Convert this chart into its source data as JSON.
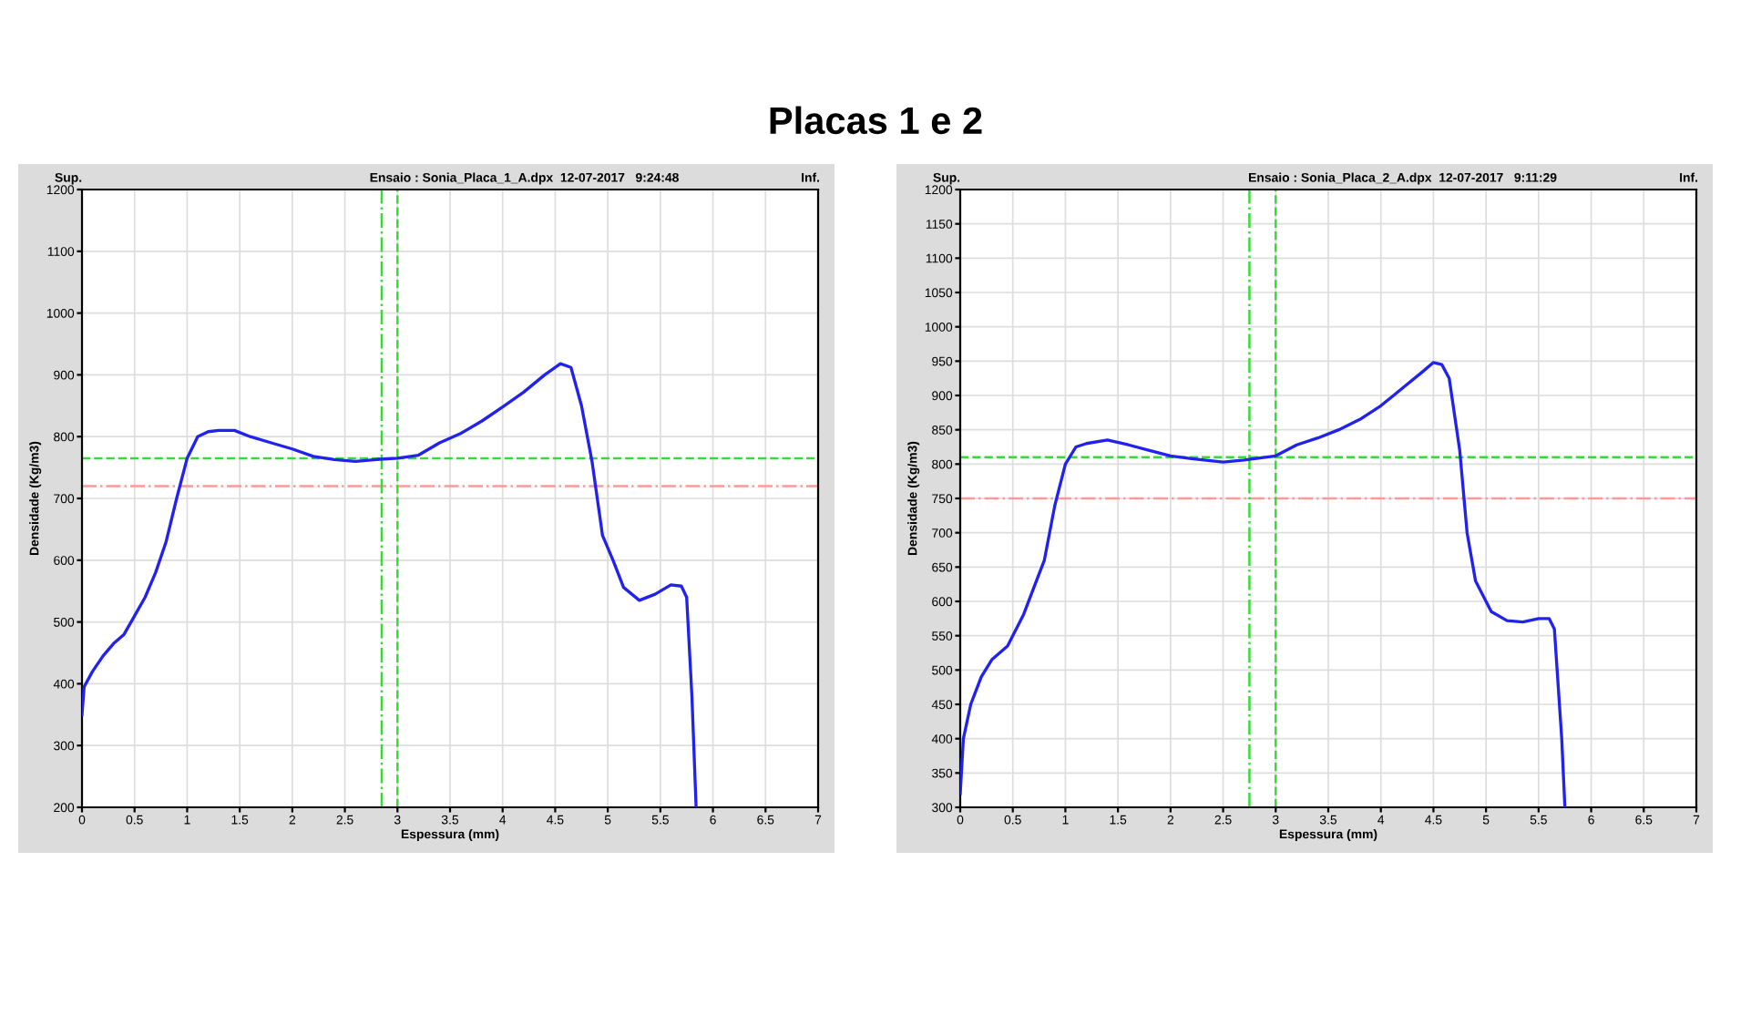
{
  "chart_data": [
    {
      "type": "line",
      "title": "Placas 1 e 2",
      "subtitle": "Ensaio : Sonia_Placa_1_A.dpx  12-07-2017   9:24:48",
      "xlabel": "Espessura (mm)",
      "ylabel": "Densidade (Kg/m3)",
      "annotations": [
        "Sup.",
        "Inf."
      ],
      "xlim": [
        0,
        7
      ],
      "xticks": [
        0,
        0.5,
        1,
        1.5,
        2,
        2.5,
        3,
        3.5,
        4,
        4.5,
        5,
        5.5,
        6,
        6.5,
        7
      ],
      "ylim": [
        200,
        1200
      ],
      "yticks": [
        200,
        300,
        400,
        500,
        600,
        700,
        800,
        900,
        1000,
        1100,
        1200
      ],
      "grid": true,
      "legend": false,
      "marker": "none",
      "line_style": "solid",
      "series": [
        {
          "color": "#2222ee",
          "x": [
            0,
            0.02,
            0.1,
            0.2,
            0.3,
            0.4,
            0.5,
            0.6,
            0.7,
            0.8,
            0.9,
            1.0,
            1.1,
            1.2,
            1.3,
            1.45,
            1.6,
            1.8,
            2.0,
            2.2,
            2.4,
            2.6,
            2.8,
            3.0,
            3.2,
            3.4,
            3.6,
            3.8,
            4.0,
            4.2,
            4.4,
            4.55,
            4.65,
            4.75,
            4.85,
            4.95,
            5.05,
            5.15,
            5.3,
            5.45,
            5.6,
            5.7,
            5.75,
            5.8,
            5.84
          ],
          "values": [
            350,
            395,
            420,
            445,
            465,
            480,
            510,
            540,
            580,
            630,
            700,
            765,
            800,
            808,
            810,
            810,
            800,
            790,
            780,
            768,
            763,
            760,
            763,
            765,
            770,
            790,
            805,
            825,
            848,
            872,
            900,
            918,
            912,
            850,
            760,
            640,
            600,
            556,
            535,
            545,
            560,
            558,
            540,
            380,
            200
          ]
        }
      ],
      "ref_lines": [
        {
          "axis": "y",
          "value": 765,
          "color": "#33dd33",
          "line_style": "dashed"
        },
        {
          "axis": "y",
          "value": 720,
          "color": "#ff9999",
          "line_style": "dashdot"
        },
        {
          "axis": "x",
          "value": 2.85,
          "color": "#33dd33",
          "line_style": "dashdot"
        },
        {
          "axis": "x",
          "value": 3.0,
          "color": "#33dd33",
          "line_style": "dashed"
        }
      ]
    },
    {
      "type": "line",
      "subtitle": "Ensaio : Sonia_Placa_2_A.dpx  12-07-2017   9:11:29",
      "xlabel": "Espessura (mm)",
      "ylabel": "Densidade (Kg/m3)",
      "annotations": [
        "Sup.",
        "Inf."
      ],
      "xlim": [
        0,
        7
      ],
      "xticks": [
        0,
        0.5,
        1,
        1.5,
        2,
        2.5,
        3,
        3.5,
        4,
        4.5,
        5,
        5.5,
        6,
        6.5,
        7
      ],
      "ylim": [
        300,
        1200
      ],
      "yticks": [
        300,
        350,
        400,
        450,
        500,
        550,
        600,
        650,
        700,
        750,
        800,
        850,
        900,
        950,
        1000,
        1050,
        1100,
        1150,
        1200
      ],
      "grid": true,
      "legend": false,
      "marker": "none",
      "line_style": "solid",
      "series": [
        {
          "color": "#2222ee",
          "x": [
            0,
            0.03,
            0.1,
            0.2,
            0.3,
            0.45,
            0.6,
            0.7,
            0.8,
            0.9,
            1.0,
            1.1,
            1.2,
            1.4,
            1.6,
            1.8,
            2.0,
            2.2,
            2.5,
            2.7,
            3.0,
            3.2,
            3.4,
            3.6,
            3.8,
            4.0,
            4.2,
            4.4,
            4.5,
            4.58,
            4.65,
            4.75,
            4.82,
            4.9,
            5.05,
            5.2,
            5.35,
            5.5,
            5.6,
            5.65,
            5.72,
            5.75
          ],
          "values": [
            320,
            400,
            450,
            490,
            515,
            535,
            580,
            620,
            660,
            740,
            800,
            825,
            830,
            835,
            828,
            820,
            812,
            808,
            803,
            806,
            812,
            828,
            838,
            850,
            865,
            885,
            910,
            935,
            948,
            945,
            925,
            820,
            700,
            630,
            585,
            572,
            570,
            575,
            575,
            560,
            400,
            300
          ]
        }
      ],
      "ref_lines": [
        {
          "axis": "y",
          "value": 810,
          "color": "#33dd33",
          "line_style": "dashed"
        },
        {
          "axis": "y",
          "value": 750,
          "color": "#ff9999",
          "line_style": "dashdot"
        },
        {
          "axis": "x",
          "value": 2.75,
          "color": "#33dd33",
          "line_style": "dashdot"
        },
        {
          "axis": "x",
          "value": 3.0,
          "color": "#33dd33",
          "line_style": "dashed"
        }
      ]
    }
  ]
}
